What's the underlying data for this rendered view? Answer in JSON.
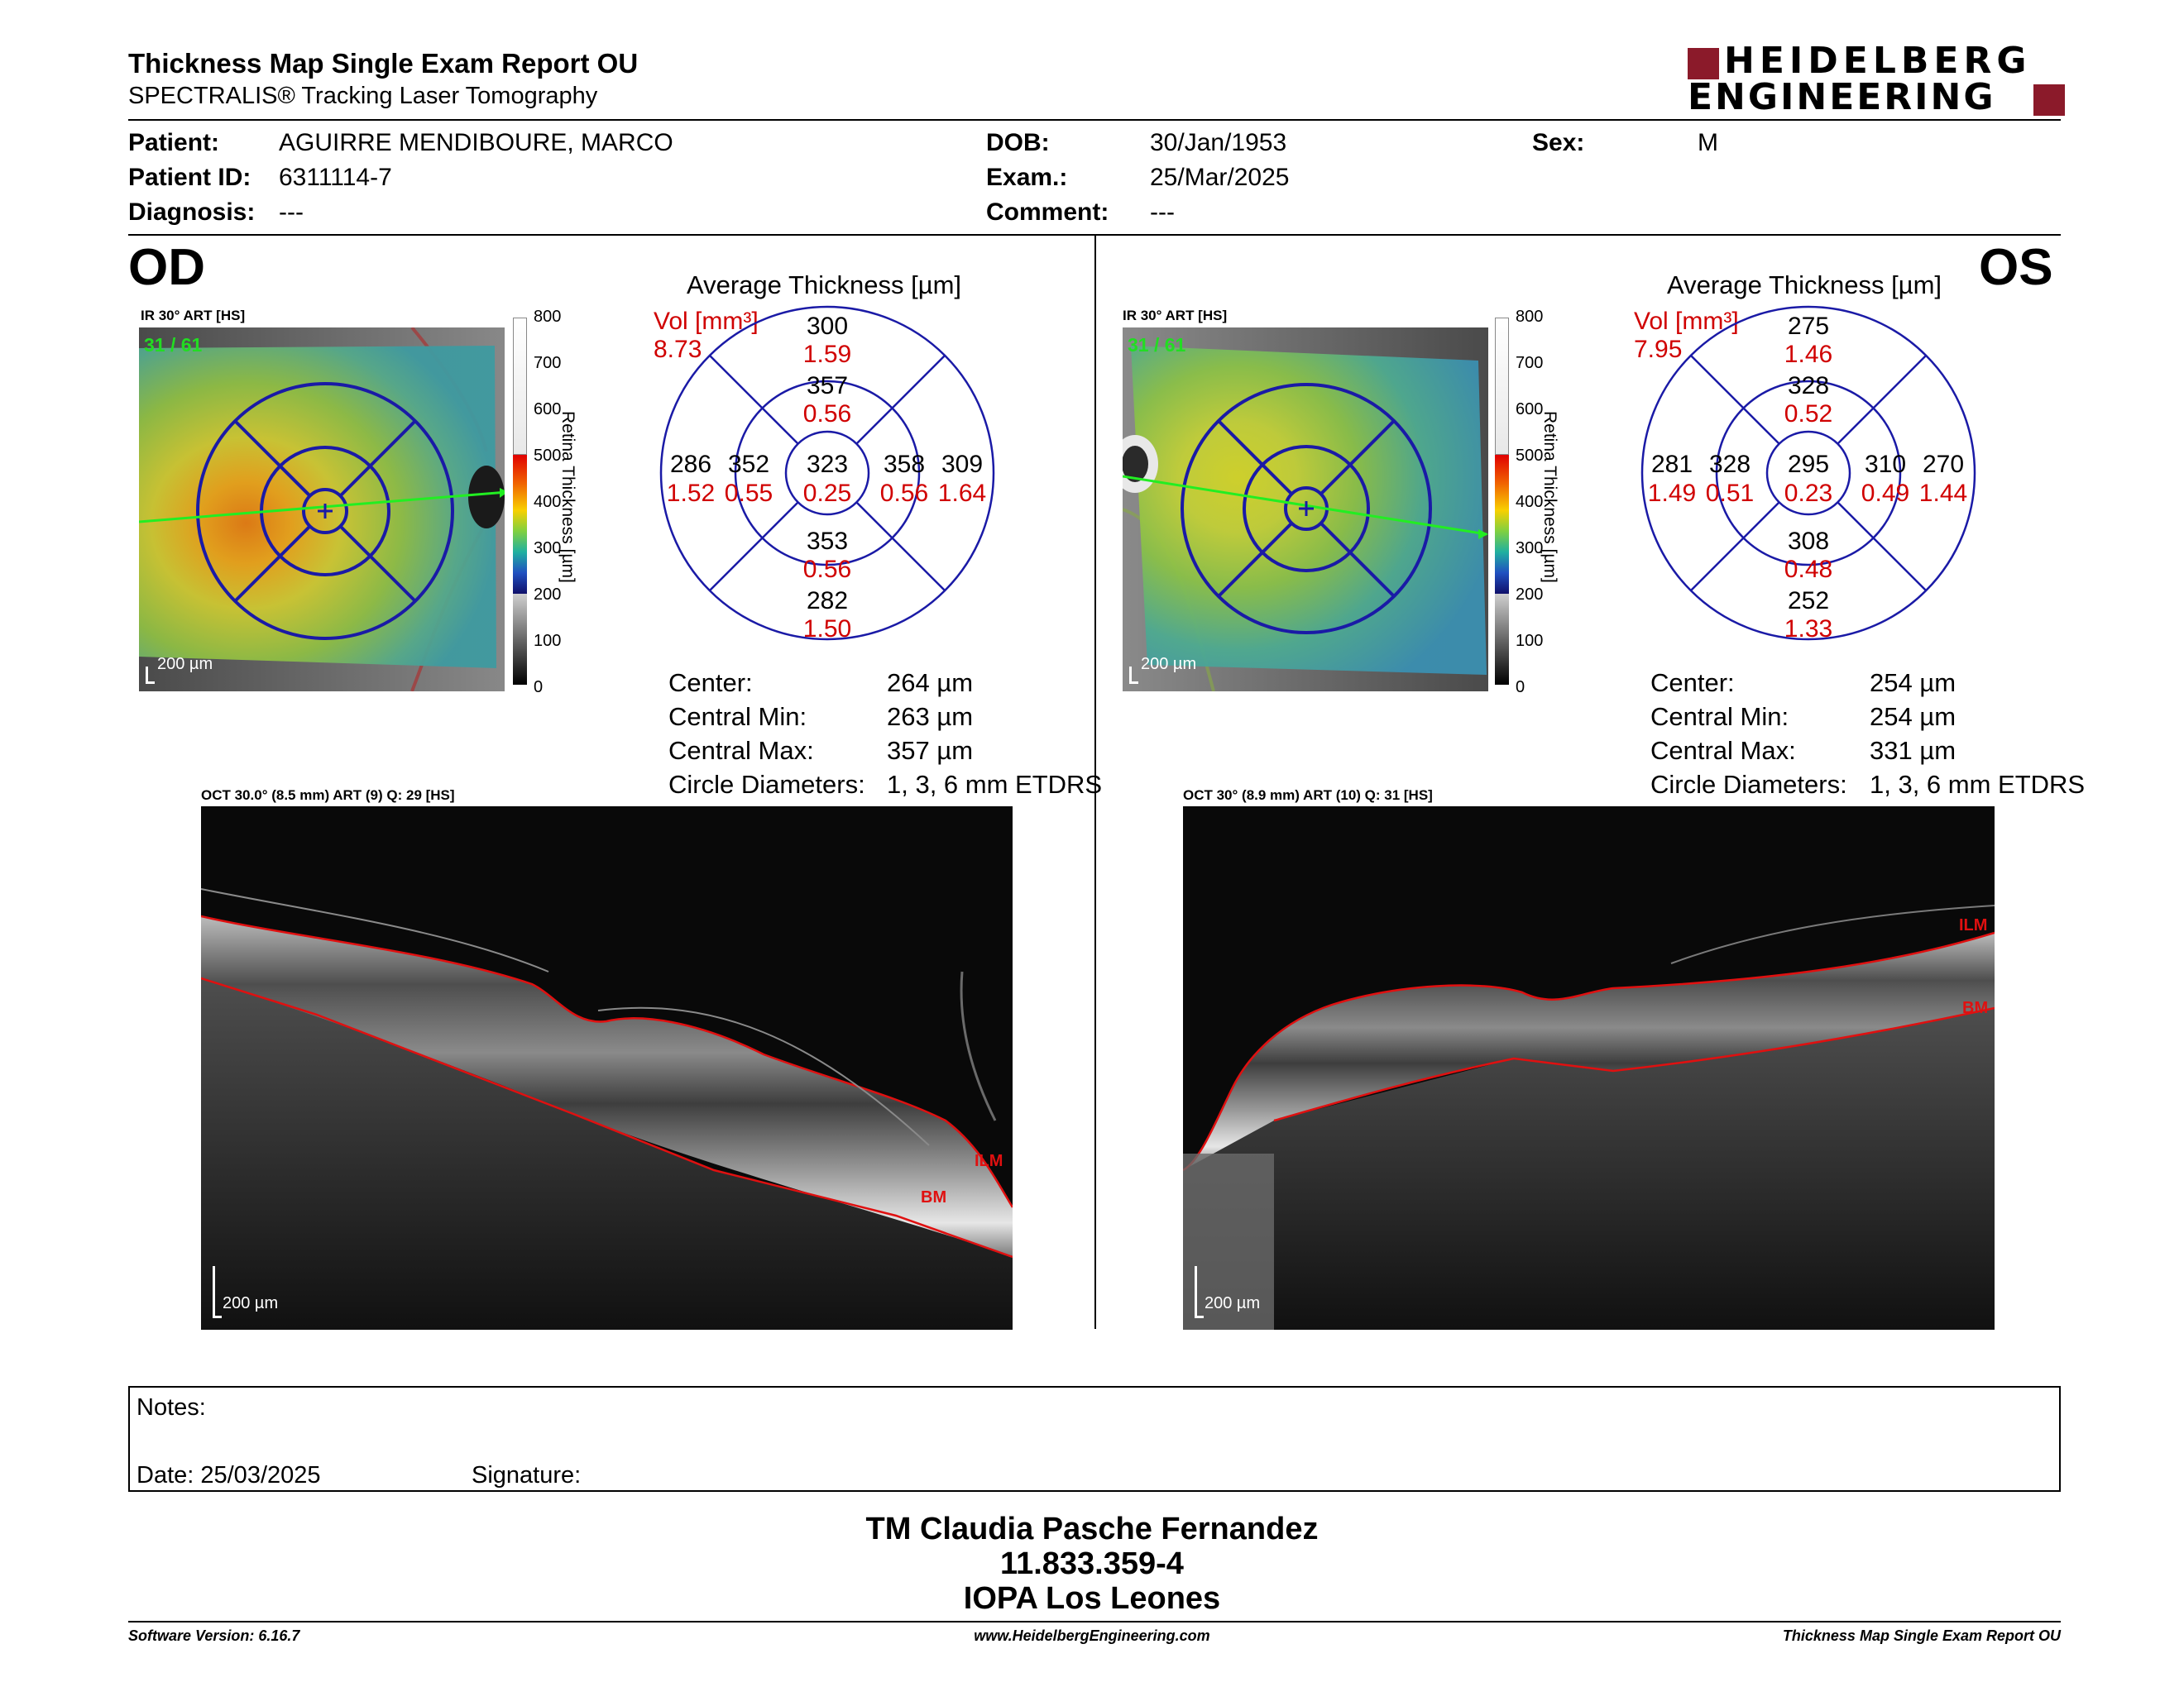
{
  "header": {
    "title": "Thickness Map Single Exam Report OU",
    "subtitle": "SPECTRALIS® Tracking Laser Tomography",
    "logo_line1": "HEIDELBERG",
    "logo_line2": "ENGINEERING",
    "brand_color": "#8b1a2a"
  },
  "patient": {
    "patient_label": "Patient:",
    "patient_value": "AGUIRRE MENDIBOURE, MARCO",
    "id_label": "Patient ID:",
    "id_value": "6311114-7",
    "diag_label": "Diagnosis:",
    "diag_value": "---",
    "dob_label": "DOB:",
    "dob_value": "30/Jan/1953",
    "exam_label": "Exam.:",
    "exam_value": "25/Mar/2025",
    "comment_label": "Comment:",
    "comment_value": "---",
    "sex_label": "Sex:",
    "sex_value": "M"
  },
  "od": {
    "eye_label": "OD",
    "ir_label": "IR 30° ART [HS]",
    "frame_count": "31 / 61",
    "scale_label": "200 µm",
    "colorbar_title": "Retina Thickness [µm]",
    "colorbar_ticks": [
      "800",
      "700",
      "600",
      "500",
      "400",
      "300",
      "200",
      "100",
      "0"
    ],
    "avg_title": "Average Thickness [µm]",
    "vol_label": "Vol [mm³]",
    "vol_value": "8.73",
    "etdrs": {
      "superior_outer": "300",
      "superior_outer_vol": "1.59",
      "superior_inner": "357",
      "superior_inner_vol": "0.56",
      "center": "323",
      "center_vol": "0.25",
      "nasal_outer": "286",
      "nasal_outer_vol": "1.52",
      "nasal_inner": "352",
      "nasal_inner_vol": "0.55",
      "temporal_inner": "358",
      "temporal_inner_vol": "0.56",
      "temporal_outer": "309",
      "temporal_outer_vol": "1.64",
      "inferior_inner": "353",
      "inferior_inner_vol": "0.56",
      "inferior_outer": "282",
      "inferior_outer_vol": "1.50"
    },
    "stats": {
      "center_label": "Center:",
      "center_value": "264 µm",
      "cmin_label": "Central Min:",
      "cmin_value": "263 µm",
      "cmax_label": "Central Max:",
      "cmax_value": "357 µm",
      "diam_label": "Circle Diameters:",
      "diam_value": "1, 3, 6 mm ETDRS"
    },
    "oct_label": "OCT 30.0° (8.5 mm) ART (9) Q: 29 [HS]",
    "oct_scale": "200 µm",
    "ilm_label": "ILM",
    "bm_label": "BM"
  },
  "os": {
    "eye_label": "OS",
    "ir_label": "IR 30° ART [HS]",
    "frame_count": "31 / 61",
    "scale_label": "200 µm",
    "colorbar_title": "Retina Thickness [µm]",
    "colorbar_ticks": [
      "800",
      "700",
      "600",
      "500",
      "400",
      "300",
      "200",
      "100",
      "0"
    ],
    "avg_title": "Average Thickness [µm]",
    "vol_label": "Vol [mm³]",
    "vol_value": "7.95",
    "etdrs": {
      "superior_outer": "275",
      "superior_outer_vol": "1.46",
      "superior_inner": "328",
      "superior_inner_vol": "0.52",
      "center": "295",
      "center_vol": "0.23",
      "nasal_outer": "281",
      "nasal_outer_vol": "1.49",
      "nasal_inner": "328",
      "nasal_inner_vol": "0.51",
      "temporal_inner": "310",
      "temporal_inner_vol": "0.49",
      "temporal_outer": "270",
      "temporal_outer_vol": "1.44",
      "inferior_inner": "308",
      "inferior_inner_vol": "0.48",
      "inferior_outer": "252",
      "inferior_outer_vol": "1.33"
    },
    "stats": {
      "center_label": "Center:",
      "center_value": "254 µm",
      "cmin_label": "Central Min:",
      "cmin_value": "254 µm",
      "cmax_label": "Central Max:",
      "cmax_value": "331 µm",
      "diam_label": "Circle Diameters:",
      "diam_value": "1, 3, 6 mm ETDRS"
    },
    "oct_label": "OCT 30° (8.9 mm) ART (10) Q: 31 [HS]",
    "oct_scale": "200 µm",
    "ilm_label": "ILM",
    "bm_label": "BM"
  },
  "notes": {
    "notes_label": "Notes:",
    "date_label": "Date: 25/03/2025",
    "signature_label": "Signature:"
  },
  "signer": {
    "name": "TM Claudia Pasche Fernandez",
    "id": "11.833.359-4",
    "org": "IOPA Los Leones"
  },
  "footer": {
    "version": "Software Version: 6.16.7",
    "url": "www.HeidelbergEngineering.com",
    "report": "Thickness Map Single Exam Report OU"
  },
  "colors": {
    "etdrs_line": "#1a1aa6",
    "volume_red": "#d00000",
    "segmentation_red": "#e01010",
    "frame_green": "#22dd22"
  }
}
